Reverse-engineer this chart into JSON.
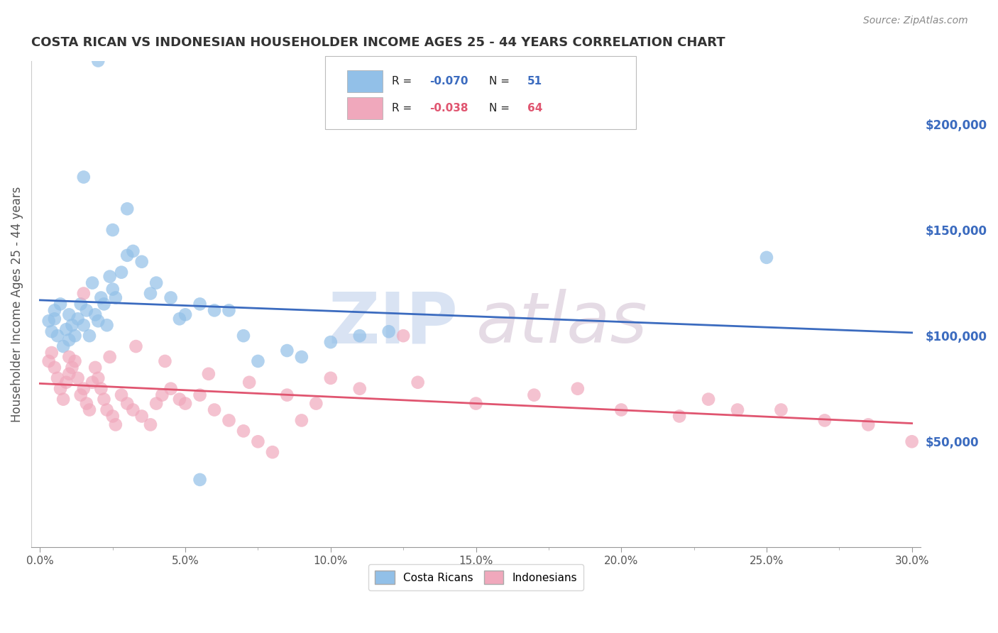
{
  "title": "COSTA RICAN VS INDONESIAN HOUSEHOLDER INCOME AGES 25 - 44 YEARS CORRELATION CHART",
  "source": "Source: ZipAtlas.com",
  "ylabel": "Householder Income Ages 25 - 44 years",
  "xlabel_ticks": [
    "0.0%",
    "5.0%",
    "10.0%",
    "15.0%",
    "20.0%",
    "25.0%",
    "30.0%"
  ],
  "xlabel_vals": [
    0.0,
    5.0,
    10.0,
    15.0,
    20.0,
    25.0,
    30.0
  ],
  "ytick_labels": [
    "$50,000",
    "$100,000",
    "$150,000",
    "$200,000"
  ],
  "ytick_vals": [
    50000,
    100000,
    150000,
    200000
  ],
  "xlim": [
    -0.3,
    30.3
  ],
  "ylim": [
    0,
    230000
  ],
  "blue_color": "#92C0E8",
  "pink_color": "#F0A8BC",
  "blue_line_color": "#3B6BBF",
  "pink_line_color": "#E05570",
  "legend_costa_label": "Costa Ricans",
  "legend_indo_label": "Indonesians",
  "watermark_zip": "ZIP",
  "watermark_atlas": "atlas",
  "grid_color": "#CCCCCC",
  "background_color": "#FFFFFF",
  "blue_x": [
    0.3,
    0.4,
    0.5,
    0.5,
    0.6,
    0.7,
    0.8,
    0.9,
    1.0,
    1.0,
    1.1,
    1.2,
    1.3,
    1.4,
    1.5,
    1.6,
    1.7,
    1.8,
    1.9,
    2.0,
    2.1,
    2.2,
    2.3,
    2.4,
    2.5,
    2.6,
    2.8,
    3.0,
    3.2,
    3.5,
    3.8,
    4.0,
    4.5,
    5.0,
    5.5,
    6.0,
    7.0,
    8.5,
    10.0,
    12.0,
    1.5,
    2.0,
    2.5,
    3.0,
    5.5,
    7.5,
    9.0,
    25.0,
    11.0,
    4.8,
    6.5
  ],
  "blue_y": [
    107000,
    102000,
    112000,
    108000,
    100000,
    115000,
    95000,
    103000,
    98000,
    110000,
    105000,
    100000,
    108000,
    115000,
    105000,
    112000,
    100000,
    125000,
    110000,
    107000,
    118000,
    115000,
    105000,
    128000,
    122000,
    118000,
    130000,
    138000,
    140000,
    135000,
    120000,
    125000,
    118000,
    110000,
    115000,
    112000,
    100000,
    93000,
    97000,
    102000,
    175000,
    230000,
    150000,
    160000,
    32000,
    88000,
    90000,
    137000,
    100000,
    108000,
    112000
  ],
  "pink_x": [
    0.3,
    0.4,
    0.5,
    0.6,
    0.7,
    0.8,
    0.9,
    1.0,
    1.0,
    1.1,
    1.2,
    1.3,
    1.4,
    1.5,
    1.6,
    1.7,
    1.8,
    1.9,
    2.0,
    2.1,
    2.2,
    2.3,
    2.5,
    2.6,
    2.8,
    3.0,
    3.2,
    3.5,
    3.8,
    4.0,
    4.2,
    4.5,
    4.8,
    5.0,
    5.5,
    6.0,
    6.5,
    7.0,
    7.5,
    8.0,
    9.0,
    10.0,
    11.0,
    12.5,
    15.0,
    17.0,
    20.0,
    22.0,
    24.0,
    27.0,
    30.0,
    2.4,
    3.3,
    4.3,
    5.8,
    7.2,
    8.5,
    9.5,
    13.0,
    18.5,
    23.0,
    25.5,
    28.5,
    1.5
  ],
  "pink_y": [
    88000,
    92000,
    85000,
    80000,
    75000,
    70000,
    78000,
    82000,
    90000,
    85000,
    88000,
    80000,
    72000,
    75000,
    68000,
    65000,
    78000,
    85000,
    80000,
    75000,
    70000,
    65000,
    62000,
    58000,
    72000,
    68000,
    65000,
    62000,
    58000,
    68000,
    72000,
    75000,
    70000,
    68000,
    72000,
    65000,
    60000,
    55000,
    50000,
    45000,
    60000,
    80000,
    75000,
    100000,
    68000,
    72000,
    65000,
    62000,
    65000,
    60000,
    50000,
    90000,
    95000,
    88000,
    82000,
    78000,
    72000,
    68000,
    78000,
    75000,
    70000,
    65000,
    58000,
    120000
  ]
}
